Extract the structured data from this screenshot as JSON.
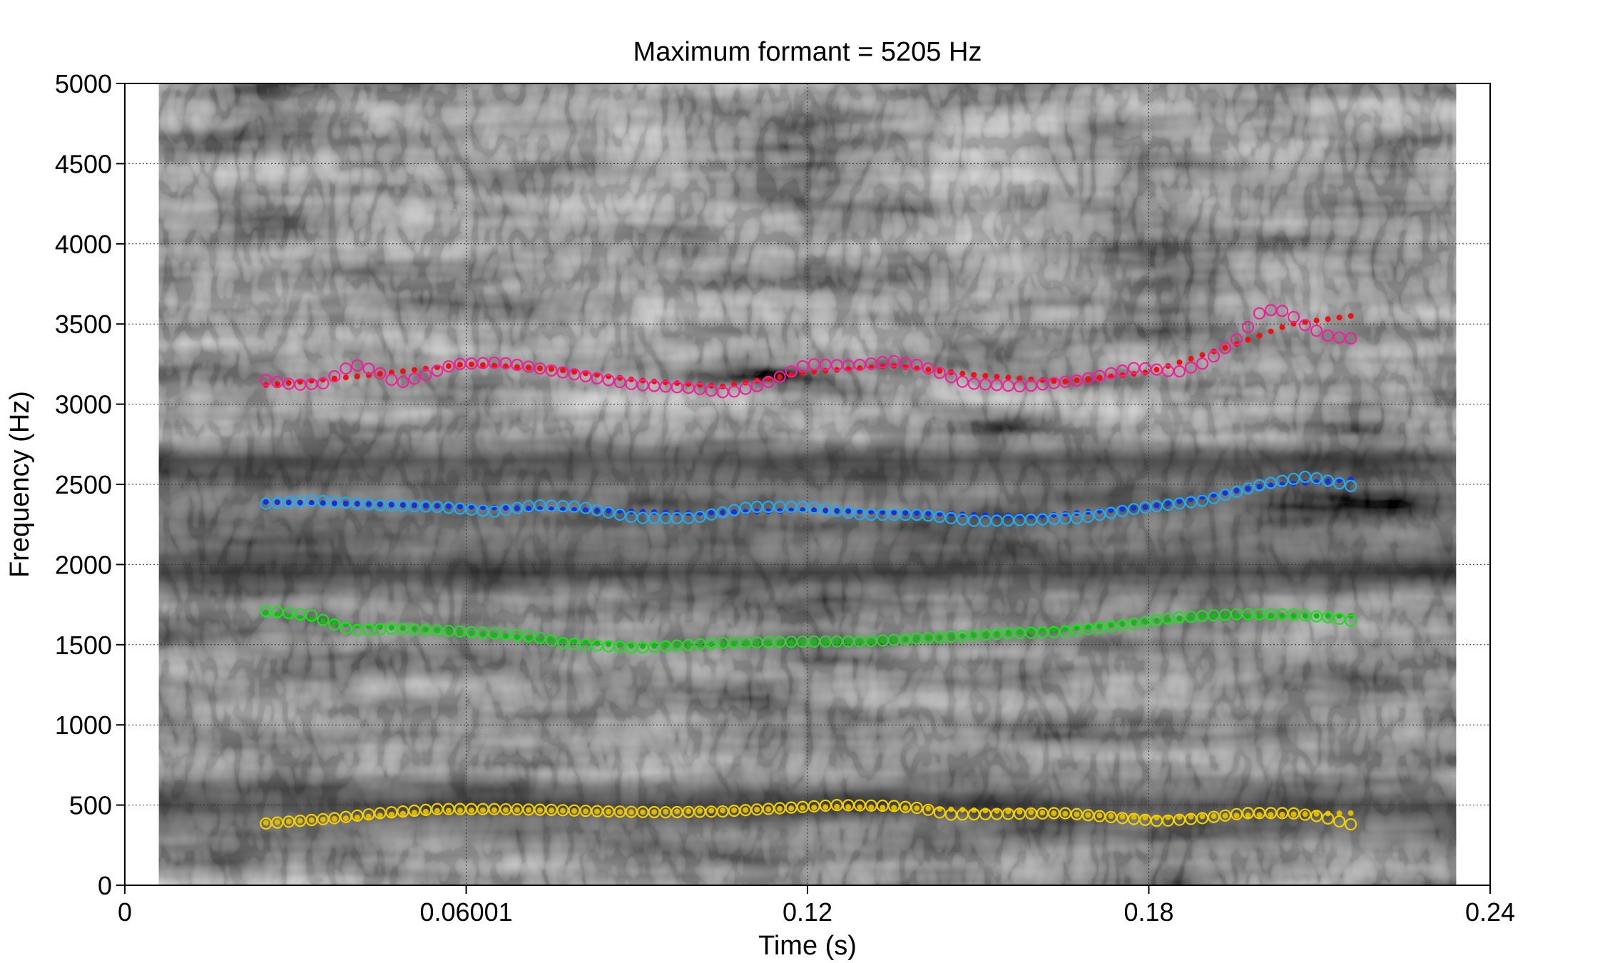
{
  "chart_data": {
    "type": "scatter",
    "title": "Maximum formant = 5205 Hz",
    "xlabel": "Time (s)",
    "ylabel": "Frequency (Hz)",
    "xlim": [
      0,
      0.24
    ],
    "ylim": [
      0,
      5000
    ],
    "xticks": [
      0,
      0.06001,
      0.12,
      0.18,
      0.24
    ],
    "xtick_labels": [
      "0",
      "0.06001",
      "0.12",
      "0.18",
      "0.24"
    ],
    "yticks": [
      0,
      500,
      1000,
      1500,
      2000,
      2500,
      3000,
      3500,
      4000,
      4500,
      5000
    ],
    "ytick_labels": [
      "0",
      "500",
      "1000",
      "1500",
      "2000",
      "2500",
      "3000",
      "3500",
      "4000",
      "4500",
      "5000"
    ],
    "grid": true,
    "background": "grayscale spectrogram",
    "spectrogram_time_range": [
      0.006,
      0.234
    ],
    "formant_time_range": [
      0.0248,
      0.2155
    ],
    "series": [
      {
        "color_measured": "#f2d000",
        "color_smoothed": "#e0b800",
        "measured_knots": [
          [
            0.0248,
            385
          ],
          [
            0.03,
            400
          ],
          [
            0.036,
            415
          ],
          [
            0.045,
            450
          ],
          [
            0.055,
            475
          ],
          [
            0.065,
            475
          ],
          [
            0.075,
            470
          ],
          [
            0.085,
            460
          ],
          [
            0.095,
            455
          ],
          [
            0.105,
            460
          ],
          [
            0.115,
            480
          ],
          [
            0.125,
            500
          ],
          [
            0.135,
            495
          ],
          [
            0.14,
            480
          ],
          [
            0.145,
            440
          ],
          [
            0.155,
            445
          ],
          [
            0.165,
            450
          ],
          [
            0.175,
            420
          ],
          [
            0.182,
            400
          ],
          [
            0.19,
            420
          ],
          [
            0.197,
            450
          ],
          [
            0.205,
            450
          ],
          [
            0.21,
            430
          ],
          [
            0.2155,
            380
          ]
        ],
        "smoothed_knots": [
          [
            0.0248,
            390
          ],
          [
            0.04,
            420
          ],
          [
            0.055,
            465
          ],
          [
            0.07,
            470
          ],
          [
            0.09,
            455
          ],
          [
            0.11,
            470
          ],
          [
            0.125,
            490
          ],
          [
            0.14,
            480
          ],
          [
            0.16,
            455
          ],
          [
            0.18,
            420
          ],
          [
            0.195,
            435
          ],
          [
            0.2155,
            450
          ]
        ]
      },
      {
        "color_measured": "#22dd22",
        "color_smoothed": "#11bb11",
        "measured_knots": [
          [
            0.0248,
            1710
          ],
          [
            0.028,
            1700
          ],
          [
            0.033,
            1680
          ],
          [
            0.038,
            1610
          ],
          [
            0.041,
            1590
          ],
          [
            0.047,
            1600
          ],
          [
            0.055,
            1590
          ],
          [
            0.065,
            1570
          ],
          [
            0.072,
            1550
          ],
          [
            0.077,
            1510
          ],
          [
            0.085,
            1490
          ],
          [
            0.09,
            1480
          ],
          [
            0.095,
            1490
          ],
          [
            0.105,
            1510
          ],
          [
            0.12,
            1520
          ],
          [
            0.13,
            1520
          ],
          [
            0.14,
            1540
          ],
          [
            0.155,
            1570
          ],
          [
            0.165,
            1580
          ],
          [
            0.175,
            1620
          ],
          [
            0.185,
            1670
          ],
          [
            0.195,
            1690
          ],
          [
            0.205,
            1690
          ],
          [
            0.212,
            1670
          ],
          [
            0.2155,
            1650
          ]
        ],
        "smoothed_knots": [
          [
            0.0248,
            1700
          ],
          [
            0.04,
            1620
          ],
          [
            0.055,
            1590
          ],
          [
            0.075,
            1530
          ],
          [
            0.09,
            1490
          ],
          [
            0.11,
            1510
          ],
          [
            0.13,
            1520
          ],
          [
            0.15,
            1560
          ],
          [
            0.17,
            1610
          ],
          [
            0.19,
            1680
          ],
          [
            0.2155,
            1680
          ]
        ]
      },
      {
        "color_measured": "#22aaee",
        "color_smoothed": "#1133dd",
        "measured_knots": [
          [
            0.0248,
            2380
          ],
          [
            0.033,
            2400
          ],
          [
            0.045,
            2370
          ],
          [
            0.055,
            2360
          ],
          [
            0.065,
            2330
          ],
          [
            0.072,
            2370
          ],
          [
            0.08,
            2360
          ],
          [
            0.09,
            2290
          ],
          [
            0.1,
            2290
          ],
          [
            0.11,
            2360
          ],
          [
            0.12,
            2360
          ],
          [
            0.13,
            2310
          ],
          [
            0.14,
            2310
          ],
          [
            0.15,
            2270
          ],
          [
            0.16,
            2280
          ],
          [
            0.168,
            2290
          ],
          [
            0.178,
            2350
          ],
          [
            0.19,
            2400
          ],
          [
            0.2,
            2500
          ],
          [
            0.208,
            2550
          ],
          [
            0.2155,
            2490
          ]
        ],
        "smoothed_knots": [
          [
            0.0248,
            2390
          ],
          [
            0.04,
            2380
          ],
          [
            0.06,
            2360
          ],
          [
            0.08,
            2340
          ],
          [
            0.1,
            2320
          ],
          [
            0.12,
            2340
          ],
          [
            0.14,
            2320
          ],
          [
            0.16,
            2300
          ],
          [
            0.18,
            2360
          ],
          [
            0.2,
            2490
          ],
          [
            0.2155,
            2530
          ]
        ]
      },
      {
        "color_measured": "#ee2299",
        "color_smoothed": "#ee1111",
        "measured_knots": [
          [
            0.0248,
            3150
          ],
          [
            0.03,
            3120
          ],
          [
            0.035,
            3130
          ],
          [
            0.04,
            3250
          ],
          [
            0.044,
            3210
          ],
          [
            0.048,
            3130
          ],
          [
            0.052,
            3170
          ],
          [
            0.058,
            3250
          ],
          [
            0.066,
            3260
          ],
          [
            0.07,
            3240
          ],
          [
            0.08,
            3180
          ],
          [
            0.09,
            3120
          ],
          [
            0.1,
            3100
          ],
          [
            0.106,
            3070
          ],
          [
            0.112,
            3120
          ],
          [
            0.12,
            3250
          ],
          [
            0.128,
            3240
          ],
          [
            0.135,
            3270
          ],
          [
            0.14,
            3240
          ],
          [
            0.148,
            3130
          ],
          [
            0.158,
            3110
          ],
          [
            0.168,
            3150
          ],
          [
            0.178,
            3230
          ],
          [
            0.185,
            3200
          ],
          [
            0.19,
            3260
          ],
          [
            0.196,
            3420
          ],
          [
            0.2,
            3590
          ],
          [
            0.204,
            3580
          ],
          [
            0.208,
            3480
          ],
          [
            0.212,
            3420
          ],
          [
            0.2155,
            3410
          ]
        ],
        "smoothed_knots": [
          [
            0.0248,
            3120
          ],
          [
            0.04,
            3170
          ],
          [
            0.06,
            3250
          ],
          [
            0.075,
            3220
          ],
          [
            0.09,
            3150
          ],
          [
            0.105,
            3110
          ],
          [
            0.12,
            3200
          ],
          [
            0.135,
            3240
          ],
          [
            0.15,
            3180
          ],
          [
            0.165,
            3140
          ],
          [
            0.18,
            3200
          ],
          [
            0.195,
            3370
          ],
          [
            0.205,
            3500
          ],
          [
            0.2155,
            3550
          ]
        ]
      }
    ]
  }
}
